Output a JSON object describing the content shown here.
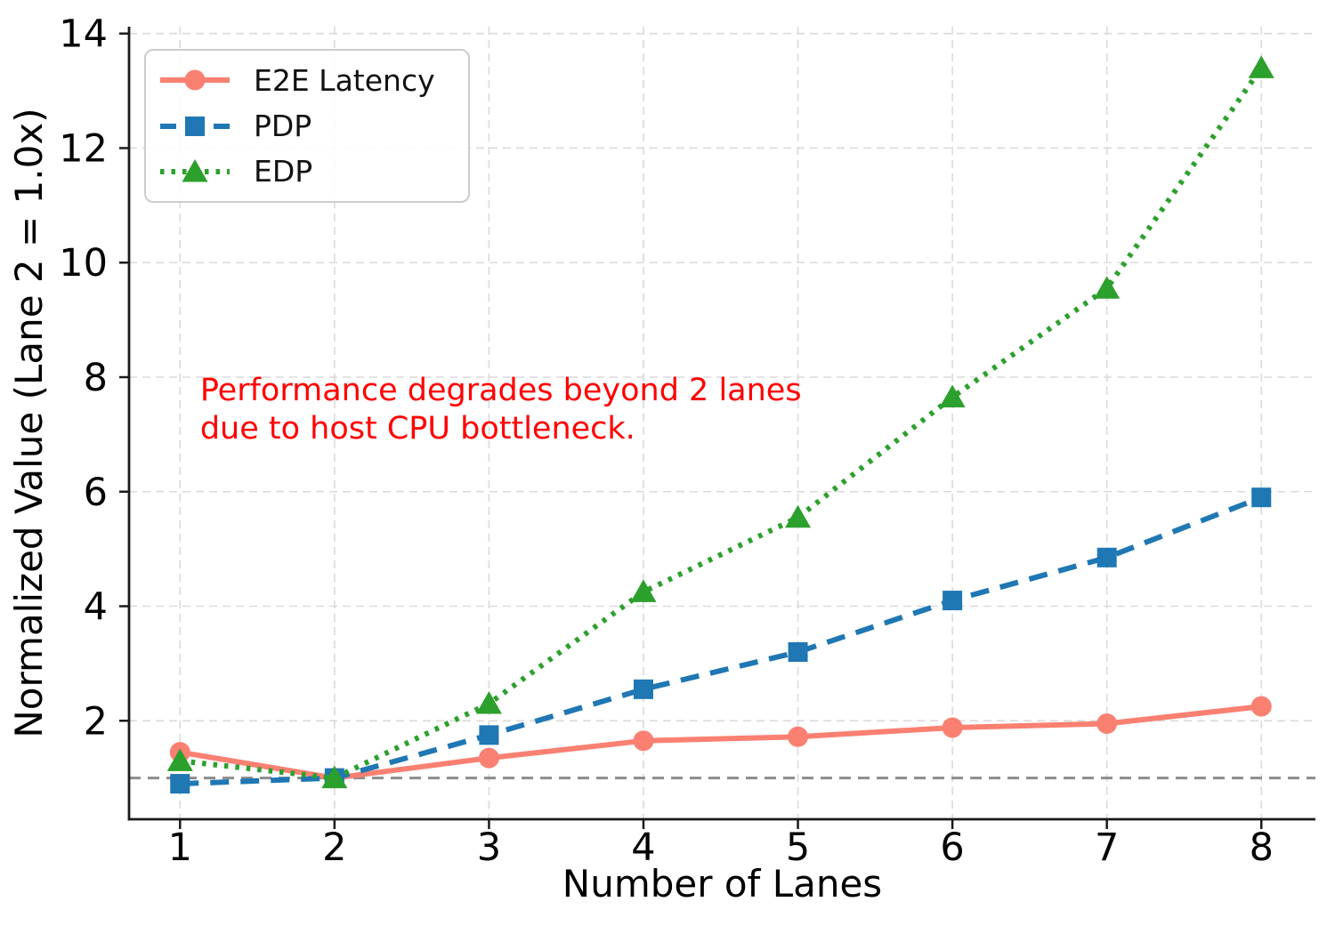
{
  "chart_data": {
    "type": "line",
    "title": "",
    "xlabel": "Number of Lanes",
    "ylabel": "Normalized Value (Lane 2 = 1.0x)",
    "x": [
      1,
      2,
      3,
      4,
      5,
      6,
      7,
      8
    ],
    "series": [
      {
        "name": "E2E Latency",
        "color": "#fa8072",
        "line_style": "solid",
        "marker": "circle",
        "values": [
          1.45,
          1.0,
          1.35,
          1.65,
          1.72,
          1.88,
          1.95,
          2.25
        ]
      },
      {
        "name": "PDP",
        "color": "#1f77b4",
        "line_style": "dashed",
        "marker": "square",
        "values": [
          0.9,
          1.0,
          1.75,
          2.55,
          3.2,
          4.1,
          4.85,
          5.9
        ]
      },
      {
        "name": "EDP",
        "color": "#2ca02c",
        "line_style": "dotted",
        "marker": "triangle",
        "values": [
          1.3,
          1.0,
          2.3,
          4.25,
          5.55,
          7.65,
          9.55,
          13.4
        ]
      }
    ],
    "x_ticks": [
      1,
      2,
      3,
      4,
      5,
      6,
      7,
      8
    ],
    "y_ticks": [
      2,
      4,
      6,
      8,
      10,
      12,
      14
    ],
    "xlim": [
      0.67,
      8.35
    ],
    "ylim": [
      0.28,
      14.12
    ],
    "grid": "dashed",
    "legend_position": "upper-left",
    "reference_line": {
      "y": 1.0,
      "color": "#8c8c8c",
      "style": "dashed"
    },
    "annotation": {
      "lines": [
        "Performance degrades beyond 2 lanes",
        "due to host CPU bottleneck."
      ],
      "color": "#ff0000",
      "x": 1.13,
      "y": 8.1
    },
    "axis_color": "#1a1a1a",
    "grid_color": "#dadada",
    "tick_font_px": 43
  }
}
